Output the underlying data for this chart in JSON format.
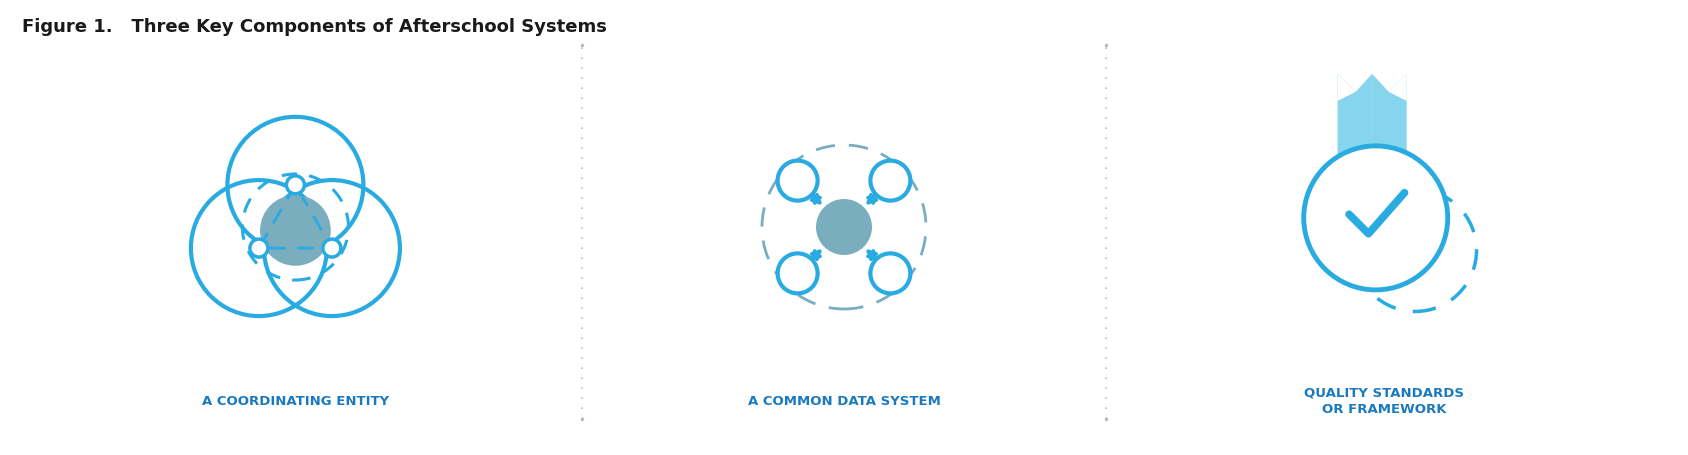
{
  "title": "Figure 1.   Three Key Components of Afterschool Systems",
  "title_fontsize": 13,
  "title_fontweight": "bold",
  "title_color": "#1a1a1a",
  "background_color": "#ffffff",
  "divider_color": "#bbbbbb",
  "label1": "A COORDINATING ENTITY",
  "label2": "A COMMON DATA SYSTEM",
  "label3": "QUALITY STANDARDS\nOR FRAMEWORK",
  "label_color": "#1a7abf",
  "label_fontsize": 9.5,
  "label_fontweight": "bold",
  "icon_blue": "#29abe2",
  "icon_light_blue": "#87d4ef",
  "icon_mid_blue": "#5bbcd6",
  "icon_gray_blue": "#7aadbe",
  "dashed_color": "#aaaaaa"
}
